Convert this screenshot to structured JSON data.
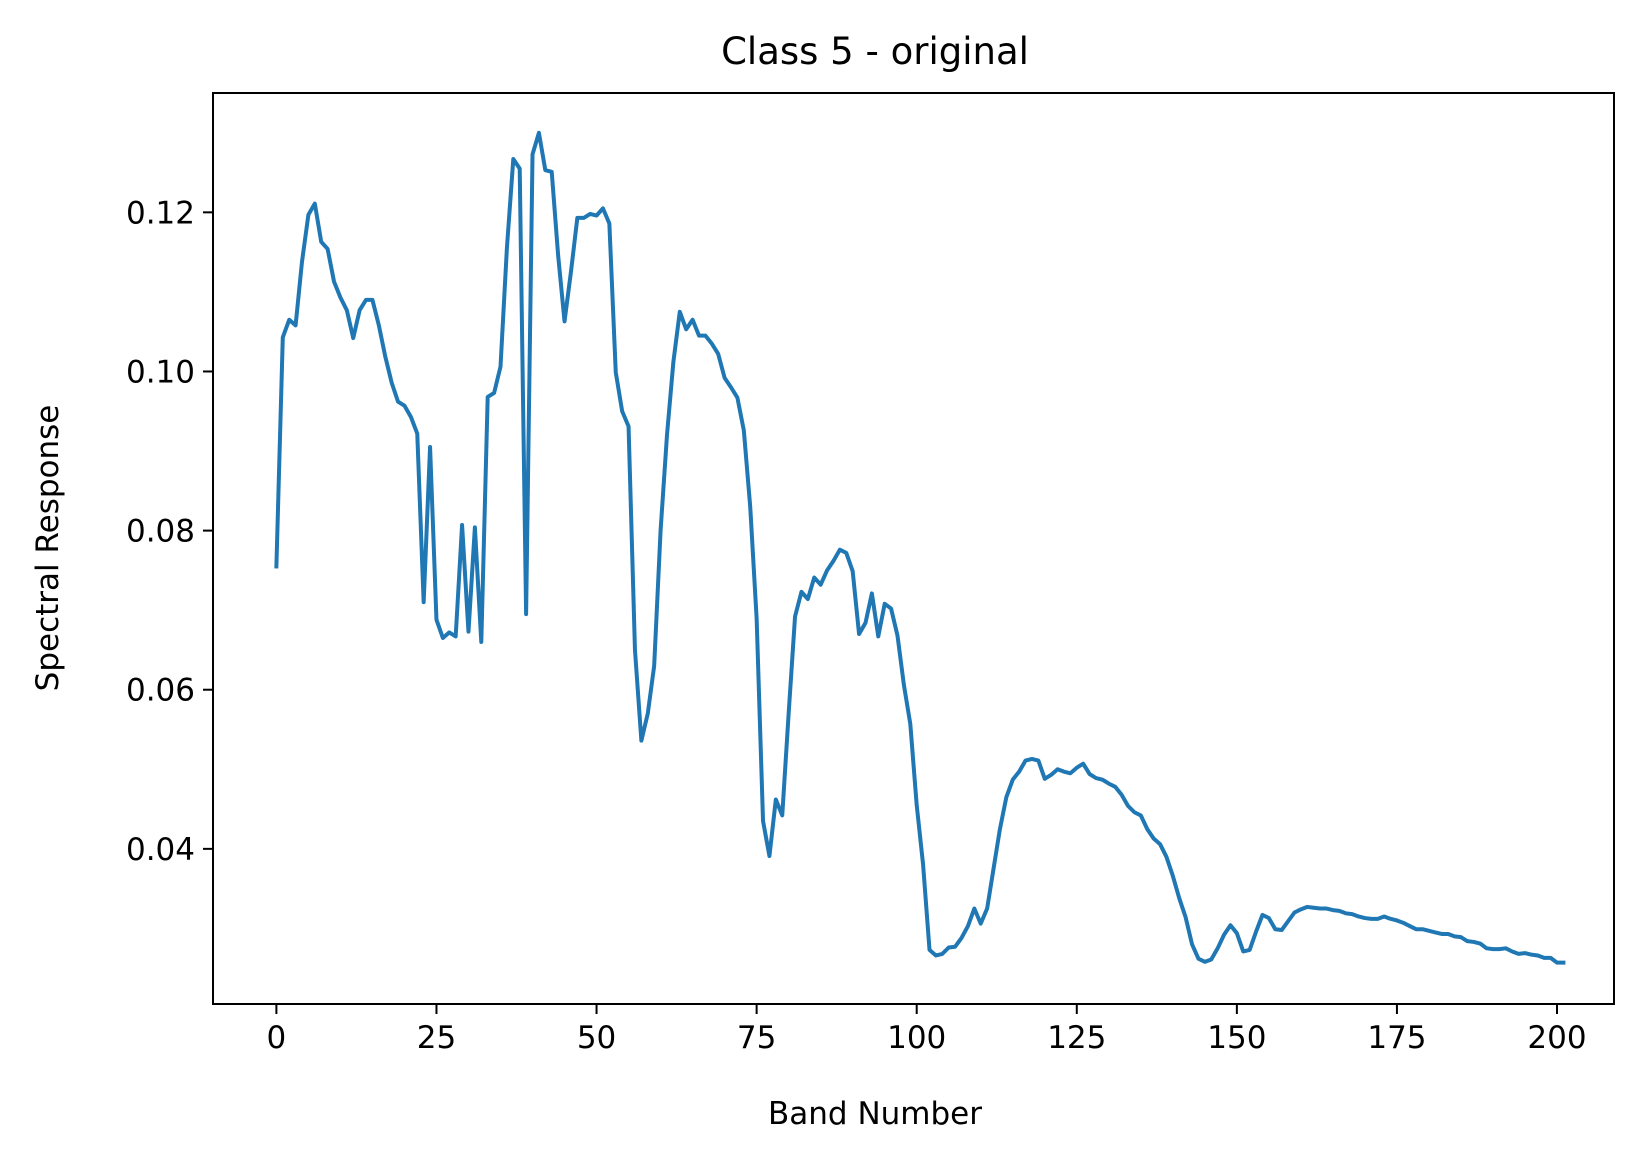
{
  "chart_data": {
    "type": "line",
    "title": "Class 5 - original",
    "xlabel": "Band Number",
    "ylabel": "Spectral Response",
    "xlim": [
      -9.9,
      208.9
    ],
    "ylim": [
      0.0205,
      0.135
    ],
    "xticks": [
      0,
      25,
      50,
      75,
      100,
      125,
      150,
      175,
      200
    ],
    "xtick_labels": [
      "0",
      "25",
      "50",
      "75",
      "100",
      "125",
      "150",
      "175",
      "200"
    ],
    "yticks": [
      0.04,
      0.06,
      0.08,
      0.1,
      0.12
    ],
    "ytick_labels": [
      "0.04",
      "0.06",
      "0.08",
      "0.10",
      "0.12"
    ],
    "grid": false,
    "legend": "none",
    "line_color": "#1f77b4",
    "series": [
      {
        "values": [
          0.0755,
          0.1043,
          0.1065,
          0.1058,
          0.1138,
          0.1197,
          0.1211,
          0.1163,
          0.1154,
          0.1113,
          0.1093,
          0.1077,
          0.1042,
          0.1077,
          0.109,
          0.109,
          0.1058,
          0.1019,
          0.0986,
          0.0962,
          0.0957,
          0.0943,
          0.0922,
          0.071,
          0.0905,
          0.0688,
          0.0665,
          0.0672,
          0.0667,
          0.0807,
          0.0673,
          0.0804,
          0.066,
          0.0968,
          0.0973,
          0.1006,
          0.1155,
          0.1267,
          0.1255,
          0.0695,
          0.1273,
          0.13,
          0.1253,
          0.1251,
          0.1146,
          0.1063,
          0.1125,
          0.1193,
          0.1193,
          0.1198,
          0.1196,
          0.1205,
          0.1186,
          0.0999,
          0.095,
          0.0931,
          0.065,
          0.0536,
          0.057,
          0.063,
          0.08,
          0.092,
          0.1012,
          0.1075,
          0.1053,
          0.1065,
          0.1045,
          0.1045,
          0.1035,
          0.1022,
          0.0992,
          0.098,
          0.0967,
          0.0926,
          0.083,
          0.069,
          0.0435,
          0.0391,
          0.0462,
          0.0442,
          0.057,
          0.0692,
          0.0723,
          0.0714,
          0.0741,
          0.0732,
          0.075,
          0.0762,
          0.0776,
          0.0772,
          0.0749,
          0.067,
          0.0684,
          0.0721,
          0.0667,
          0.0708,
          0.0702,
          0.0668,
          0.0606,
          0.0557,
          0.0455,
          0.038,
          0.0273,
          0.0266,
          0.0268,
          0.0276,
          0.0277,
          0.0288,
          0.0303,
          0.0325,
          0.0306,
          0.0325,
          0.0375,
          0.0425,
          0.0465,
          0.0487,
          0.0497,
          0.0511,
          0.0513,
          0.0511,
          0.0488,
          0.0493,
          0.05,
          0.0497,
          0.0495,
          0.0502,
          0.0507,
          0.0494,
          0.0489,
          0.0487,
          0.0482,
          0.0478,
          0.0468,
          0.0454,
          0.0446,
          0.0442,
          0.0425,
          0.0413,
          0.0406,
          0.039,
          0.0366,
          0.0338,
          0.0314,
          0.028,
          0.0262,
          0.0258,
          0.0261,
          0.0275,
          0.0292,
          0.0304,
          0.0294,
          0.0271,
          0.0273,
          0.0296,
          0.0317,
          0.0313,
          0.0299,
          0.0298,
          0.0309,
          0.032,
          0.0324,
          0.0327,
          0.0326,
          0.0325,
          0.0325,
          0.0323,
          0.0322,
          0.0319,
          0.0318,
          0.0315,
          0.0313,
          0.0312,
          0.0312,
          0.0315,
          0.0312,
          0.031,
          0.0307,
          0.0303,
          0.0299,
          0.0299,
          0.0297,
          0.0295,
          0.0293,
          0.0293,
          0.029,
          0.0289,
          0.0284,
          0.0283,
          0.0281,
          0.0275,
          0.0274,
          0.0274,
          0.0275,
          0.0271,
          0.0268,
          0.0269,
          0.0267,
          0.0266,
          0.0263,
          0.0263,
          0.0257,
          0.0257
        ]
      }
    ]
  }
}
